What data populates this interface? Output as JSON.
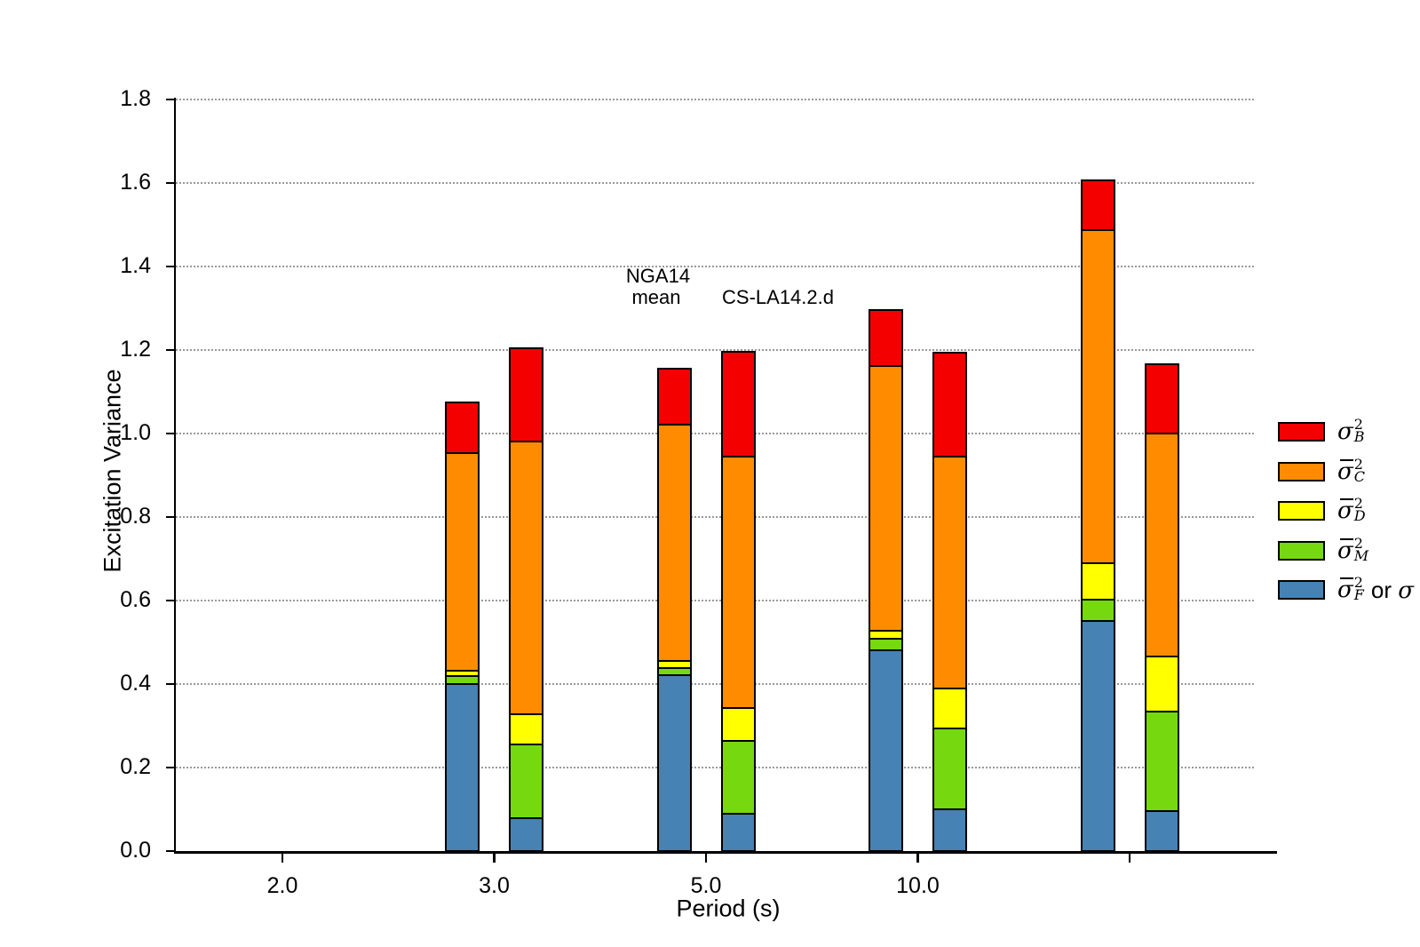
{
  "chart_data": {
    "type": "bar",
    "stacked": true,
    "title": "",
    "xlabel": "Period (s)",
    "ylabel": "Excitation Variance",
    "ylim": [
      0,
      1.8
    ],
    "ytick_step": 0.2,
    "yticks": [
      "0.0",
      "0.2",
      "0.4",
      "0.6",
      "0.8",
      "1.0",
      "1.2",
      "1.4",
      "1.6",
      "1.8"
    ],
    "xticks": [
      "2.0",
      "3.0",
      "5.0",
      "10.0",
      ""
    ],
    "grid": {
      "axis": "y",
      "style": "dotted",
      "color": "#999999"
    },
    "legend_position": "right",
    "stack_order_bottom_to_top": [
      "sigma_F",
      "sigma_M",
      "sigma_D",
      "sigma_C",
      "sigma_B"
    ],
    "series_colors": {
      "sigma_B": "#f40000",
      "sigma_C": "#ff8c00",
      "sigma_D": "#ffff00",
      "sigma_M": "#76d80e",
      "sigma_F": "#4682b4"
    },
    "legend": [
      {
        "name": "sigma_B",
        "color": "#f40000",
        "overbar": false,
        "sup": "2",
        "sub": "B",
        "suffix_plain": "",
        "suffix_sigma": ""
      },
      {
        "name": "sigma_C",
        "color": "#ff8c00",
        "overbar": true,
        "sup": "2",
        "sub": "C",
        "suffix_plain": "",
        "suffix_sigma": ""
      },
      {
        "name": "sigma_D",
        "color": "#ffff00",
        "overbar": true,
        "sup": "2",
        "sub": "D",
        "suffix_plain": "",
        "suffix_sigma": ""
      },
      {
        "name": "sigma_M",
        "color": "#76d80e",
        "overbar": true,
        "sup": "2",
        "sub": "M",
        "suffix_plain": "",
        "suffix_sigma": ""
      },
      {
        "name": "sigma_F",
        "color": "#4682b4",
        "overbar": true,
        "sup": "2",
        "sub": "F",
        "suffix_plain": "or",
        "suffix_sigma": "σ"
      }
    ],
    "annotations": [
      {
        "text": "NGA14"
      },
      {
        "text": "mean"
      },
      {
        "text": "CS-LA14.2.d"
      }
    ],
    "bar_pairs": [
      {
        "x_tick": "3.0",
        "bars": [
          {
            "label": "NGA14 mean",
            "total": 1.075,
            "segments_bottom_to_top": [
              0.4,
              0.02,
              0.012,
              0.521,
              0.122
            ]
          },
          {
            "label": "CS-LA14.2.d",
            "total": 1.205,
            "segments_bottom_to_top": [
              0.079,
              0.176,
              0.073,
              0.652,
              0.225
            ]
          }
        ]
      },
      {
        "x_tick": "5.0",
        "bars": [
          {
            "label": "NGA14 mean",
            "total": 1.156,
            "segments_bottom_to_top": [
              0.421,
              0.018,
              0.017,
              0.566,
              0.134
            ]
          },
          {
            "label": "CS-LA14.2.d",
            "total": 1.196,
            "segments_bottom_to_top": [
              0.09,
              0.174,
              0.078,
              0.602,
              0.252
            ]
          }
        ]
      },
      {
        "x_tick": "10.0",
        "bars": [
          {
            "label": "NGA14 mean",
            "total": 1.295,
            "segments_bottom_to_top": [
              0.481,
              0.027,
              0.02,
              0.634,
              0.133
            ]
          },
          {
            "label": "CS-LA14.2.d",
            "total": 1.194,
            "segments_bottom_to_top": [
              0.1,
              0.193,
              0.096,
              0.556,
              0.249
            ]
          }
        ]
      },
      {
        "x_tick": "",
        "bars": [
          {
            "label": "NGA14 mean",
            "total": 1.606,
            "segments_bottom_to_top": [
              0.552,
              0.051,
              0.086,
              0.798,
              0.119
            ]
          },
          {
            "label": "CS-LA14.2.d",
            "total": 1.166,
            "segments_bottom_to_top": [
              0.095,
              0.239,
              0.132,
              0.535,
              0.165
            ]
          }
        ]
      }
    ]
  }
}
